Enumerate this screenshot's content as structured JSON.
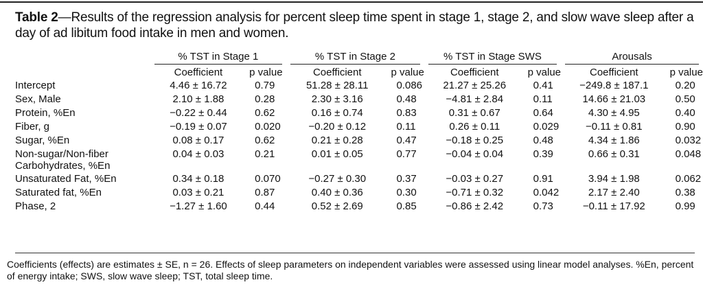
{
  "caption": {
    "label": "Table 2",
    "text": "—Results of the regression analysis for percent sleep time spent in stage 1, stage 2, and slow wave sleep after a day of ad libitum food intake in men and women."
  },
  "groups": [
    "% TST in Stage 1",
    "% TST in Stage 2",
    "% TST in Stage SWS",
    "Arousals"
  ],
  "subheaders": {
    "coef": "Coefficient",
    "p": "p value"
  },
  "rows": [
    {
      "label": "Intercept",
      "cells": [
        [
          "4.46 ± 16.72",
          "0.79"
        ],
        [
          "51.28 ± 28.11",
          "0.086"
        ],
        [
          "21.27 ± 25.26",
          "0.41"
        ],
        [
          "−249.8 ± 187.1",
          "0.20"
        ]
      ]
    },
    {
      "label": "Sex, Male",
      "cells": [
        [
          "2.10 ± 1.88",
          "0.28"
        ],
        [
          "2.30 ± 3.16",
          "0.48"
        ],
        [
          "−4.81 ± 2.84",
          "0.11"
        ],
        [
          "14.66 ± 21.03",
          "0.50"
        ]
      ]
    },
    {
      "label": "Protein, %En",
      "cells": [
        [
          "−0.22 ± 0.44",
          "0.62"
        ],
        [
          "0.16 ± 0.74",
          "0.83"
        ],
        [
          "0.31 ± 0.67",
          "0.64"
        ],
        [
          "4.30 ± 4.95",
          "0.40"
        ]
      ]
    },
    {
      "label": "Fiber, g",
      "cells": [
        [
          "−0.19 ± 0.07",
          "0.020"
        ],
        [
          "−0.20 ± 0.12",
          "0.11"
        ],
        [
          "0.26 ± 0.11",
          "0.029"
        ],
        [
          "−0.11 ± 0.81",
          "0.90"
        ]
      ]
    },
    {
      "label": "Sugar, %En",
      "cells": [
        [
          "0.08 ± 0.17",
          "0.62"
        ],
        [
          "0.21 ± 0.28",
          "0.47"
        ],
        [
          "−0.18 ± 0.25",
          "0.48"
        ],
        [
          "4.34 ± 1.86",
          "0.032"
        ]
      ]
    },
    {
      "label": "Non-sugar/Non-fiber",
      "label2": "Carbohydrates, %En",
      "cells": [
        [
          "0.04 ± 0.03",
          "0.21"
        ],
        [
          "0.01 ± 0.05",
          "0.77"
        ],
        [
          "−0.04 ± 0.04",
          "0.39"
        ],
        [
          "0.66 ± 0.31",
          "0.048"
        ]
      ]
    },
    {
      "label": "Unsaturated Fat, %En",
      "cells": [
        [
          "0.34 ± 0.18",
          "0.070"
        ],
        [
          "−0.27 ± 0.30",
          "0.37"
        ],
        [
          "−0.03 ± 0.27",
          "0.91"
        ],
        [
          "3.94 ± 1.98",
          "0.062"
        ]
      ]
    },
    {
      "label": "Saturated fat, %En",
      "cells": [
        [
          "0.03 ± 0.21",
          "0.87"
        ],
        [
          "0.40 ± 0.36",
          "0.30"
        ],
        [
          "−0.71 ± 0.32",
          "0.042"
        ],
        [
          "2.17 ± 2.40",
          "0.38"
        ]
      ]
    },
    {
      "label": "Phase, 2",
      "cells": [
        [
          "−1.27 ± 1.60",
          "0.44"
        ],
        [
          "0.52 ± 2.69",
          "0.85"
        ],
        [
          "−0.86 ± 2.42",
          "0.73"
        ],
        [
          "−0.11 ± 17.92",
          "0.99"
        ]
      ]
    }
  ],
  "footnote": "Coefficients (effects) are estimates ± SE, n = 26. Effects of sleep parameters on independent variables were assessed using linear model analyses. %En, percent of energy intake; SWS, slow wave sleep; TST, total sleep time."
}
